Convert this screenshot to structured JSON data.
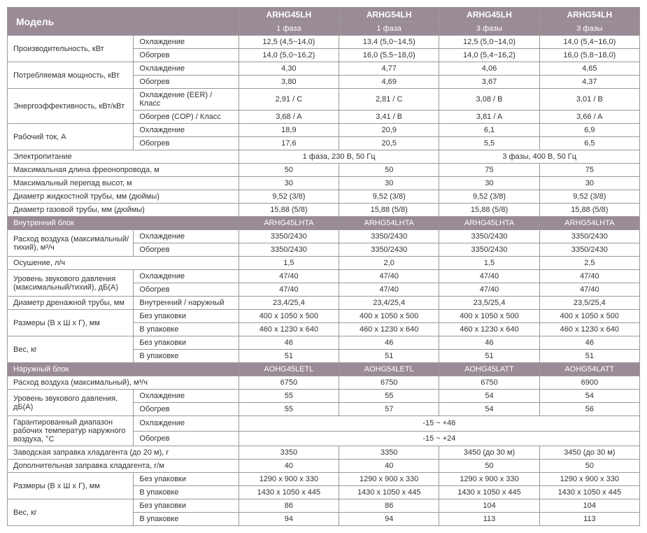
{
  "header": {
    "model": "Модель",
    "cols": [
      {
        "name": "ARHG45LH",
        "phase": "1 фаза"
      },
      {
        "name": "ARHG54LH",
        "phase": "1 фаза"
      },
      {
        "name": "ARHG45LH",
        "phase": "3 фазы"
      },
      {
        "name": "ARHG54LH",
        "phase": "3 фазы"
      }
    ]
  },
  "labels": {
    "capacity": "Производительность, кВт",
    "power_in": "Потребляемая мощность, кВт",
    "efficiency": "Энергоэффективность, кВт/кВт",
    "current": "Рабочий ток, А",
    "power_supply": "Электропитание",
    "max_pipe": "Максимальная длина фреонопровода, м",
    "max_drop": "Максимальный перепад высот, м",
    "liquid_d": "Диаметр жидкостной трубы, мм (дюймы)",
    "gas_d": "Диаметр газовой трубы, мм (дюймы)",
    "indoor": "Внутренний блок",
    "airflow": "Расход воздуха (максимальный/тихий), м³/ч",
    "dehum": "Осушение, л/ч",
    "spl": "Уровень звукового давления (максимальный/тихий), дБ(А)",
    "drain_d": "Диаметр дренажной трубы, мм",
    "dims": "Размеры (В х Ш х Г), мм",
    "weight": "Вес, кг",
    "outdoor": "Наружный блок",
    "airflow_out": "Расход воздуха (максимальный), м³/ч",
    "spl_out": "Уровень звукового давления, дБ(А)",
    "op_range": "Гарантированный диапазон рабочих температур наружного воздуха, °С",
    "precharge": "Заводская заправка хладагента (до 20 м), г",
    "add_charge": "Дополнительная заправка хладагента, г/м",
    "cool": "Охлаждение",
    "heat": "Обогрев",
    "eer": "Охлаждение (EER) / Класс",
    "cop": "Обогрев (COP) / Класс",
    "int_ext": "Внутренний / наружный",
    "unpacked": "Без упаковки",
    "packed": "В упаковке"
  },
  "rows": {
    "cap_cool": [
      "12,5 (4,5~14,0)",
      "13,4 (5,0~14,5)",
      "12,5 (5,0~14,0)",
      "14,0 (5,4~16,0)"
    ],
    "cap_heat": [
      "14,0 (5,0~16,2)",
      "16,0 (5,5~18,0)",
      "14,0 (5,4~16,2)",
      "16,0 (5,8~18,0)"
    ],
    "pi_cool": [
      "4,30",
      "4,77",
      "4,06",
      "4,65"
    ],
    "pi_heat": [
      "3,80",
      "4,69",
      "3,67",
      "4,37"
    ],
    "eer": [
      "2,91 / C",
      "2,81 / C",
      "3,08 / B",
      "3,01 / B"
    ],
    "cop": [
      "3,68 / A",
      "3,41 / B",
      "3,81 / A",
      "3,66 / A"
    ],
    "cur_cool": [
      "18,9",
      "20,9",
      "6,1",
      "6,9"
    ],
    "cur_heat": [
      "17,6",
      "20,5",
      "5,5",
      "6,5"
    ],
    "power": [
      "1 фаза, 230 В, 50 Гц",
      "3 фазы, 400 В, 50 Гц"
    ],
    "max_pipe": [
      "50",
      "50",
      "75",
      "75"
    ],
    "max_drop": [
      "30",
      "30",
      "30",
      "30"
    ],
    "liquid_d": [
      "9,52 (3/8)",
      "9,52 (3/8)",
      "9,52 (3/8)",
      "9,52 (3/8)"
    ],
    "gas_d": [
      "15,88 (5/8)",
      "15,88 (5/8)",
      "15,88 (5/8)",
      "15,88 (5/8)"
    ],
    "indoor_models": [
      "ARHG45LHTA",
      "ARHG54LHTA",
      "ARHG45LHTA",
      "ARHG54LHTA"
    ],
    "af_cool": [
      "3350/2430",
      "3350/2430",
      "3350/2430",
      "3350/2430"
    ],
    "af_heat": [
      "3350/2430",
      "3350/2430",
      "3350/2430",
      "3350/2430"
    ],
    "dehum": [
      "1,5",
      "2,0",
      "1,5",
      "2,5"
    ],
    "spl_cool": [
      "47/40",
      "47/40",
      "47/40",
      "47/40"
    ],
    "spl_heat": [
      "47/40",
      "47/40",
      "47/40",
      "47/40"
    ],
    "drain_d": [
      "23,4/25,4",
      "23,4/25,4",
      "23,5/25,4",
      "23,5/25,4"
    ],
    "dims_u": [
      "400 x 1050 x 500",
      "400 x 1050 x 500",
      "400 x 1050 x 500",
      "400 x 1050 x 500"
    ],
    "dims_p": [
      "460 x 1230 x 640",
      "460 x 1230 x 640",
      "460 x 1230 x 640",
      "460 x 1230 x 640"
    ],
    "w_u": [
      "46",
      "46",
      "46",
      "46"
    ],
    "w_p": [
      "51",
      "51",
      "51",
      "51"
    ],
    "outdoor_models": [
      "AOHG45LETL",
      "AOHG54LETL",
      "AOHG45LATT",
      "AOHG54LATT"
    ],
    "af_out": [
      "6750",
      "6750",
      "6750",
      "6900"
    ],
    "splo_cool": [
      "55",
      "55",
      "54",
      "54"
    ],
    "splo_heat": [
      "55",
      "57",
      "54",
      "56"
    ],
    "op_cool": "-15 ~ +46",
    "op_heat": "-15 ~ +24",
    "precharge": [
      "3350",
      "3350",
      "3450 (до 30 м)",
      "3450 (до 30 м)"
    ],
    "add_charge": [
      "40",
      "40",
      "50",
      "50"
    ],
    "odims_u": [
      "1290 x 900 x 330",
      "1290 x 900 x 330",
      "1290 x 900 x 330",
      "1290 x 900 x 330"
    ],
    "odims_p": [
      "1430 x 1050 x 445",
      "1430 x 1050 x 445",
      "1430 x 1050 x 445",
      "1430 x 1050 x 445"
    ],
    "ow_u": [
      "86",
      "86",
      "104",
      "104"
    ],
    "ow_p": [
      "94",
      "94",
      "113",
      "113"
    ]
  }
}
